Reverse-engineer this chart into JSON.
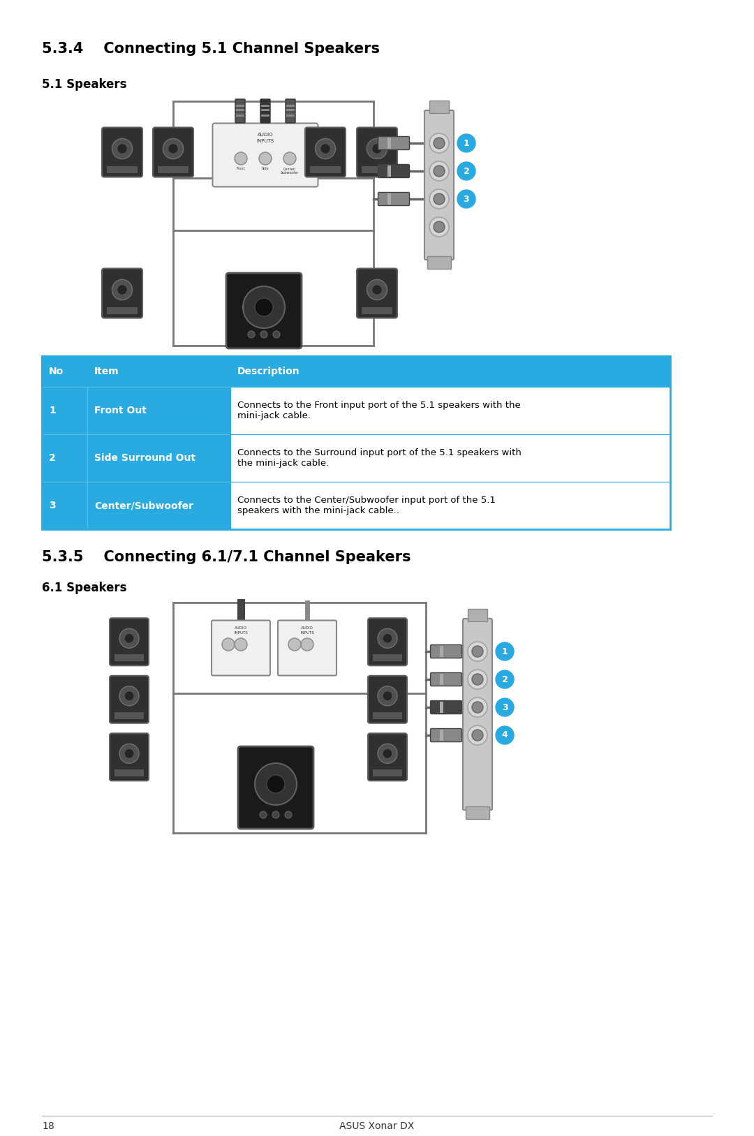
{
  "bg_color": "#ffffff",
  "page_width": 10.8,
  "page_height": 16.27,
  "title1": "5.3.4    Connecting 5.1 Channel Speakers",
  "subtitle1": "5.1 Speakers",
  "title2": "5.3.5    Connecting 6.1/7.1 Channel Speakers",
  "subtitle2": "6.1 Speakers",
  "table_header_bg": "#29ABE2",
  "table_header_text": "#ffffff",
  "table_border": "#29ABE2",
  "table_columns": [
    "No",
    "Item",
    "Description"
  ],
  "table_rows": [
    [
      "1",
      "Front Out",
      "Connects to the Front input port of the 5.1 speakers with the\nmini-jack cable."
    ],
    [
      "2",
      "Side Surround Out",
      "Connects to the Surround input port of the 5.1 speakers with\nthe mini-jack cable."
    ],
    [
      "3",
      "Center/Subwoofer",
      "Connects to the Center/Subwoofer input port of the 5.1\nspeakers with the mini-jack cable.."
    ]
  ],
  "footer_text": "18",
  "footer_center": "ASUS Xonar DX",
  "circle_color": "#29ABE2",
  "circle_text_color": "#ffffff"
}
